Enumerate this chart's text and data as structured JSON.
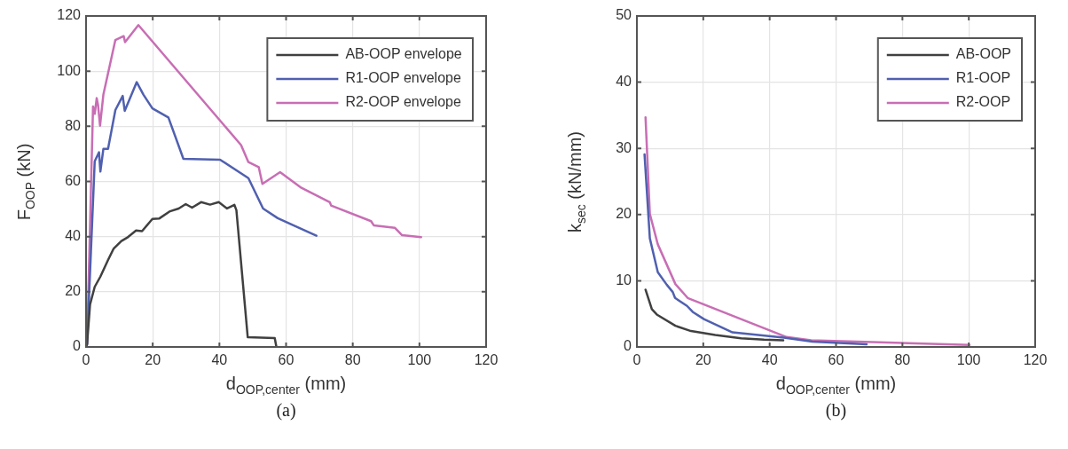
{
  "chart_data": [
    {
      "type": "line",
      "xlabel": "d$_{OOP,center}$ (mm)",
      "ylabel": "F$_{OOP}$ (kN)",
      "xlim": [
        0,
        120
      ],
      "xticks": [
        0,
        20,
        40,
        60,
        80,
        100,
        120
      ],
      "ylim": [
        0,
        120
      ],
      "yticks": [
        0,
        20,
        40,
        60,
        80,
        100,
        120
      ],
      "grid": true,
      "legend": "top right",
      "annotations": [
        "(a)"
      ],
      "series": [
        {
          "name": "AB-OOP envelope",
          "color": "#404040",
          "x": [
            0,
            0.3,
            1.2,
            2.6,
            4.3,
            6.6,
            8.3,
            10.6,
            12.3,
            15,
            16.8,
            19.9,
            22,
            25.2,
            27.8,
            29.9,
            31.8,
            34.5,
            37.2,
            39.8,
            42.3,
            44.5,
            45.1,
            48.5,
            56.6,
            57.1
          ],
          "values": [
            0,
            1,
            15.4,
            21.8,
            25.5,
            31.5,
            35.7,
            38.4,
            39.6,
            42.2,
            42,
            46.4,
            46.6,
            49.2,
            50.2,
            51.8,
            50.5,
            52.5,
            51.6,
            52.5,
            50.2,
            51.5,
            49.6,
            3.5,
            3.2,
            0
          ]
        },
        {
          "name": "R1-OOP envelope",
          "color": "#5060b0",
          "x": [
            0,
            0.3,
            2.6,
            3.9,
            4.3,
            5.2,
            6.6,
            8.8,
            11,
            11.6,
            15.2,
            17.2,
            19.9,
            24.7,
            29.2,
            40.2,
            48.7,
            53.1,
            57.5,
            69.1
          ],
          "values": [
            0,
            1,
            67.3,
            70.6,
            63.6,
            71.8,
            71.8,
            85.9,
            91,
            85.6,
            96,
            91.5,
            86.5,
            83.2,
            68.2,
            67.9,
            61.2,
            50.2,
            46.7,
            40.3
          ]
        },
        {
          "name": "R2-OOP envelope",
          "color": "#c86eb4",
          "x": [
            0,
            0.3,
            2.1,
            2.6,
            3.2,
            3.6,
            4.2,
            5.2,
            8.8,
            11.3,
            11.7,
            15.7,
            46.5,
            48.7,
            51.8,
            52.9,
            58.2,
            64.6,
            73.1,
            73.5,
            85.5,
            86.3,
            92.6,
            94.8,
            100.5
          ],
          "values": [
            0,
            1,
            87.2,
            84.5,
            90.2,
            87.7,
            80.2,
            91.5,
            111.3,
            112.7,
            110.5,
            116.7,
            73.2,
            67,
            65.2,
            59.1,
            63.4,
            57.7,
            52.5,
            51.3,
            45.6,
            44.1,
            43.2,
            40.5,
            39.8
          ]
        }
      ]
    },
    {
      "type": "line",
      "xlabel": "d$_{OOP,center}$ (mm)",
      "ylabel": "k$_{sec}$ (kN/mm)",
      "xlim": [
        0,
        120
      ],
      "xticks": [
        0,
        20,
        40,
        60,
        80,
        100,
        120
      ],
      "ylim": [
        0,
        50
      ],
      "yticks": [
        0,
        10,
        20,
        30,
        40,
        50
      ],
      "grid": true,
      "legend": "top right",
      "annotations": [
        "(b)"
      ],
      "series": [
        {
          "name": "AB-OOP",
          "color": "#404040",
          "x": [
            2.6,
            4.5,
            6,
            11.6,
            16.3,
            23.6,
            31.4,
            38.3,
            44.1
          ],
          "values": [
            8.65,
            5.7,
            4.9,
            3.2,
            2.4,
            1.8,
            1.3,
            1.1,
            1
          ]
        },
        {
          "name": "R1-OOP",
          "color": "#5060b0",
          "x": [
            2.3,
            3.9,
            6.3,
            9,
            10.8,
            11.5,
            15.1,
            16.8,
            20.2,
            24.5,
            28.8,
            44.3,
            52.9,
            69.2
          ],
          "values": [
            29.1,
            16.4,
            11.3,
            9.4,
            8.3,
            7.4,
            6.2,
            5.3,
            4.2,
            3.2,
            2.2,
            1.4,
            0.8,
            0.4
          ]
        },
        {
          "name": "R2-OOP",
          "color": "#c86eb4",
          "x": [
            2.6,
            3.9,
            6.3,
            11.6,
            15.3,
            45.1,
            52.5,
            100.2
          ],
          "values": [
            34.7,
            20.1,
            15.5,
            9.5,
            7.4,
            1.5,
            1,
            0.3
          ]
        }
      ]
    }
  ]
}
